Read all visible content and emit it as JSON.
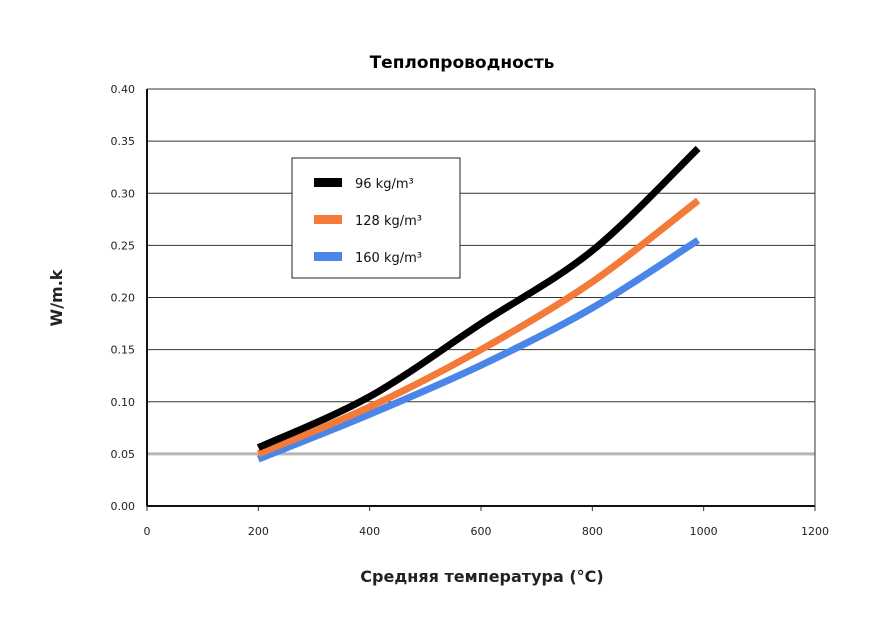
{
  "chart_data": {
    "type": "line",
    "title": "Теплопроводность",
    "xlabel": "Средняя температура (°C)",
    "ylabel": "W/m.k",
    "xlim": [
      0,
      1200
    ],
    "ylim": [
      0,
      0.4
    ],
    "xticks": [
      "0",
      "200",
      "400",
      "600",
      "800",
      "1000",
      "1200"
    ],
    "yticks": [
      "0.00",
      "0.05",
      "0.10",
      "0.15",
      "0.20",
      "0.25",
      "0.30",
      "0.35",
      "0.40"
    ],
    "grid": "horizontal",
    "legend": "upper-left inside",
    "x": [
      200,
      400,
      600,
      800,
      990
    ],
    "series": [
      {
        "name": "96 kg/m³",
        "color": "#000000",
        "values": [
          0.056,
          0.105,
          0.175,
          0.245,
          0.343
        ]
      },
      {
        "name": "128 kg/m³",
        "color": "#f37a38",
        "values": [
          0.05,
          0.095,
          0.15,
          0.215,
          0.293
        ]
      },
      {
        "name": "160 kg/m³",
        "color": "#4a86e8",
        "values": [
          0.045,
          0.088,
          0.135,
          0.19,
          0.255
        ]
      }
    ]
  }
}
